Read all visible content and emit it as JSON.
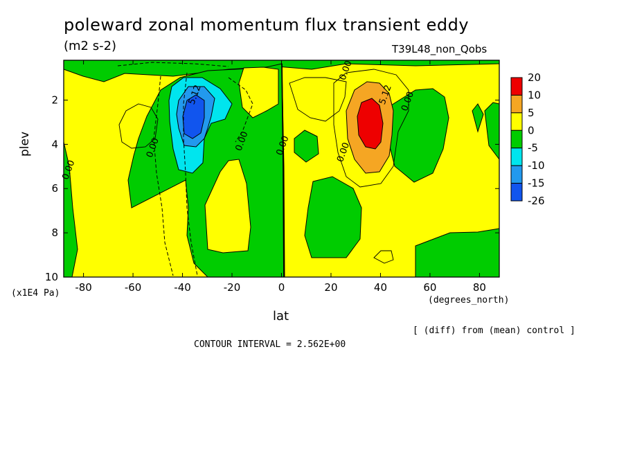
{
  "chart_data": {
    "type": "heatmap",
    "title": "poleward zonal momentum flux transient eddy",
    "units": "(m2 s-2)",
    "run_label": "T39L48_non_Qobs",
    "xlabel": "lat",
    "x_units": "(degrees_north)",
    "ylabel": "plev",
    "y_units": "(x1E4 Pa)",
    "xlim": [
      -88,
      88
    ],
    "ylim": [
      10,
      0.2
    ],
    "x_ticks": [
      -80,
      -60,
      -40,
      -20,
      0,
      20,
      40,
      60,
      80
    ],
    "y_ticks": [
      2,
      4,
      6,
      8,
      10
    ],
    "contour_interval_text": "CONTOUR INTERVAL = 2.562E+00",
    "note": "[ (diff) from (mean) control ]",
    "colorbar": {
      "labels": [
        "20",
        "10",
        "5",
        "0",
        "-5",
        "-10",
        "-15",
        "-26"
      ],
      "colors": [
        "#ee0000",
        "#f5a623",
        "#ffff00",
        "#00cc00",
        "#00e5ee",
        "#2299ee",
        "#1155ee"
      ]
    },
    "contour_labels": [
      {
        "text": "0.00",
        "x": -85,
        "y": 5.2
      },
      {
        "text": "0.00",
        "x": -51,
        "y": 4.2
      },
      {
        "text": "5.12",
        "x": -34,
        "y": 1.8
      },
      {
        "text": "0.00",
        "x": -15,
        "y": 3.9
      },
      {
        "text": "0.00",
        "x": 1.5,
        "y": 4.1
      },
      {
        "text": "0.00",
        "x": 26,
        "y": 4.4
      },
      {
        "text": "0.00",
        "x": 27,
        "y": 0.7
      },
      {
        "text": "5.12",
        "x": 43,
        "y": 1.8
      },
      {
        "text": "0.00",
        "x": 52,
        "y": 2.1
      }
    ],
    "extrema": [
      {
        "sign": "negative",
        "lat": -36,
        "plev": 2.8,
        "approx_min": -26
      },
      {
        "sign": "positive",
        "lat": 37,
        "plev": 2.8,
        "approx_max": 20
      }
    ]
  }
}
